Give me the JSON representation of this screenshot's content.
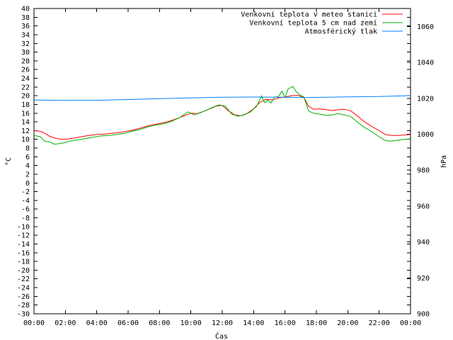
{
  "chart_data": {
    "type": "line",
    "xlabel": "Čas",
    "ylabel": "°C",
    "y2label": "hPa",
    "x_ticks": [
      "00:00",
      "02:00",
      "04:00",
      "06:00",
      "08:00",
      "10:00",
      "12:00",
      "14:00",
      "16:00",
      "18:00",
      "20:00",
      "22:00",
      "00:00"
    ],
    "ylim": [
      -30,
      40
    ],
    "y_ticks": [
      40,
      38,
      36,
      34,
      32,
      30,
      28,
      26,
      24,
      22,
      20,
      18,
      16,
      14,
      12,
      10,
      8,
      6,
      4,
      2,
      0,
      -2,
      -4,
      -6,
      -8,
      -10,
      -12,
      -14,
      -16,
      -18,
      -20,
      -22,
      -24,
      -26,
      -28,
      -30
    ],
    "y2lim": [
      900,
      1070
    ],
    "y2_ticks": [
      1060,
      1040,
      1020,
      1000,
      980,
      960,
      940,
      920,
      900
    ],
    "legend_position": "top-right",
    "grid": false,
    "series": [
      {
        "name": "Venkovní teplota v meteo stanici",
        "color": "#ff0000",
        "axis": "left",
        "points": [
          [
            0,
            12.0
          ],
          [
            0.3,
            11.9
          ],
          [
            0.6,
            11.6
          ],
          [
            1.0,
            10.7
          ],
          [
            1.4,
            10.2
          ],
          [
            1.8,
            10.0
          ],
          [
            2.2,
            10.1
          ],
          [
            2.6,
            10.3
          ],
          [
            3.0,
            10.6
          ],
          [
            3.5,
            10.9
          ],
          [
            4.0,
            11.1
          ],
          [
            4.5,
            11.2
          ],
          [
            5.0,
            11.4
          ],
          [
            5.5,
            11.6
          ],
          [
            6.0,
            11.9
          ],
          [
            6.5,
            12.3
          ],
          [
            7.0,
            12.8
          ],
          [
            7.5,
            13.3
          ],
          [
            8.0,
            13.6
          ],
          [
            8.5,
            14.0
          ],
          [
            9.0,
            14.6
          ],
          [
            9.5,
            15.3
          ],
          [
            10.0,
            16.0
          ],
          [
            10.4,
            15.9
          ],
          [
            10.8,
            16.4
          ],
          [
            11.2,
            17.0
          ],
          [
            11.6,
            17.6
          ],
          [
            12.0,
            17.8
          ],
          [
            12.4,
            16.5
          ],
          [
            12.8,
            15.6
          ],
          [
            13.2,
            15.4
          ],
          [
            13.6,
            16.0
          ],
          [
            14.0,
            17.0
          ],
          [
            14.4,
            18.5
          ],
          [
            14.8,
            19.2
          ],
          [
            15.2,
            19.0
          ],
          [
            15.6,
            19.5
          ],
          [
            16.0,
            19.7
          ],
          [
            16.4,
            20.0
          ],
          [
            16.8,
            20.1
          ],
          [
            17.2,
            19.6
          ],
          [
            17.5,
            17.6
          ],
          [
            17.8,
            16.9
          ],
          [
            18.2,
            17.0
          ],
          [
            18.6,
            16.8
          ],
          [
            19.0,
            16.6
          ],
          [
            19.4,
            16.8
          ],
          [
            19.8,
            16.9
          ],
          [
            20.2,
            16.5
          ],
          [
            20.6,
            15.4
          ],
          [
            21.0,
            14.2
          ],
          [
            21.5,
            13.0
          ],
          [
            22.0,
            12.0
          ],
          [
            22.4,
            11.1
          ],
          [
            22.8,
            10.9
          ],
          [
            23.2,
            10.9
          ],
          [
            23.6,
            11.0
          ],
          [
            24.0,
            11.1
          ]
        ]
      },
      {
        "name": "Venkovní teplota 5 cm nad zemí",
        "color": "#00b000",
        "axis": "left",
        "points": [
          [
            0,
            10.9
          ],
          [
            0.4,
            10.6
          ],
          [
            0.7,
            9.5
          ],
          [
            1.0,
            9.4
          ],
          [
            1.3,
            8.9
          ],
          [
            1.6,
            9.0
          ],
          [
            1.9,
            9.2
          ],
          [
            2.3,
            9.6
          ],
          [
            2.8,
            9.9
          ],
          [
            3.3,
            10.2
          ],
          [
            3.8,
            10.5
          ],
          [
            4.3,
            10.8
          ],
          [
            4.8,
            10.9
          ],
          [
            5.3,
            11.1
          ],
          [
            5.8,
            11.4
          ],
          [
            6.3,
            11.9
          ],
          [
            6.8,
            12.3
          ],
          [
            7.3,
            12.9
          ],
          [
            7.8,
            13.3
          ],
          [
            8.3,
            13.6
          ],
          [
            8.8,
            14.2
          ],
          [
            9.3,
            15.0
          ],
          [
            9.8,
            16.3
          ],
          [
            10.2,
            15.6
          ],
          [
            10.6,
            16.1
          ],
          [
            11.0,
            16.7
          ],
          [
            11.4,
            17.4
          ],
          [
            11.8,
            17.9
          ],
          [
            12.2,
            17.6
          ],
          [
            12.6,
            15.8
          ],
          [
            13.0,
            15.3
          ],
          [
            13.4,
            15.6
          ],
          [
            13.8,
            16.3
          ],
          [
            14.2,
            17.6
          ],
          [
            14.5,
            20.0
          ],
          [
            14.7,
            18.4
          ],
          [
            14.9,
            19.0
          ],
          [
            15.1,
            18.3
          ],
          [
            15.3,
            19.6
          ],
          [
            15.6,
            19.9
          ],
          [
            15.8,
            21.1
          ],
          [
            16.0,
            19.6
          ],
          [
            16.2,
            21.6
          ],
          [
            16.5,
            22.1
          ],
          [
            16.7,
            21.0
          ],
          [
            16.9,
            20.3
          ],
          [
            17.2,
            19.7
          ],
          [
            17.5,
            16.5
          ],
          [
            17.8,
            16.0
          ],
          [
            18.2,
            15.8
          ],
          [
            18.6,
            15.5
          ],
          [
            19.0,
            15.6
          ],
          [
            19.4,
            15.9
          ],
          [
            19.8,
            15.6
          ],
          [
            20.2,
            15.2
          ],
          [
            20.6,
            14.0
          ],
          [
            21.0,
            12.9
          ],
          [
            21.5,
            11.8
          ],
          [
            22.0,
            10.6
          ],
          [
            22.4,
            9.7
          ],
          [
            22.8,
            9.6
          ],
          [
            23.2,
            9.8
          ],
          [
            23.6,
            10.0
          ],
          [
            24.0,
            10.1
          ]
        ]
      },
      {
        "name": "Atmosférický tlak",
        "color": "#0080ff",
        "axis": "right",
        "points": [
          [
            0,
            1019.0
          ],
          [
            2,
            1018.8
          ],
          [
            4,
            1018.9
          ],
          [
            6,
            1019.3
          ],
          [
            8,
            1019.8
          ],
          [
            10,
            1020.2
          ],
          [
            12,
            1020.6
          ],
          [
            14,
            1020.7
          ],
          [
            16,
            1020.6
          ],
          [
            17,
            1020.4
          ],
          [
            18,
            1020.5
          ],
          [
            20,
            1020.8
          ],
          [
            22,
            1021.0
          ],
          [
            24,
            1021.5
          ]
        ]
      }
    ]
  }
}
